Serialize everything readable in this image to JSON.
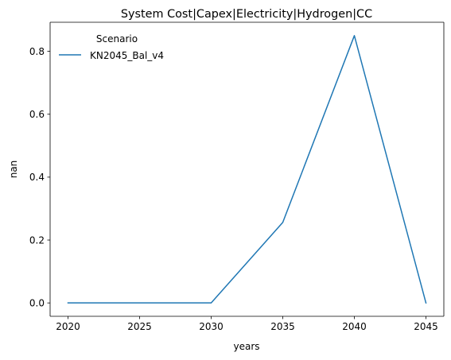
{
  "chart_data": {
    "type": "line",
    "title": "System Cost|Capex|Electricity|Hydrogen|CC",
    "xlabel": "years",
    "ylabel": "nan",
    "x": [
      2020,
      2025,
      2030,
      2035,
      2040,
      2045
    ],
    "xticks": [
      "2020",
      "2025",
      "2030",
      "2035",
      "2040",
      "2045"
    ],
    "yticks": [
      "0.0",
      "0.2",
      "0.4",
      "0.6",
      "0.8"
    ],
    "xlim": [
      2018.75,
      2046.25
    ],
    "ylim": [
      -0.0425,
      0.8925
    ],
    "grid": false,
    "legend": {
      "title": "Scenario",
      "placement": "top-left"
    },
    "series": [
      {
        "name": "KN2045_Bal_v4",
        "color": "#1f77b4",
        "x": [
          2020,
          2025,
          2030,
          2035,
          2040,
          2045
        ],
        "values": [
          0.0,
          0.0,
          0.0,
          0.256,
          0.85,
          0.0
        ]
      }
    ]
  }
}
